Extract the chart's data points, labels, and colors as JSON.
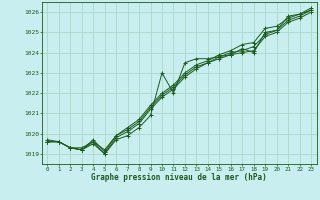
{
  "title": "Graphe pression niveau de la mer (hPa)",
  "bg_color": "#c8eef0",
  "grid_color": "#a8d8c8",
  "line_color": "#1a5c1a",
  "xlim": [
    -0.5,
    23.5
  ],
  "ylim": [
    1018.5,
    1026.5
  ],
  "yticks": [
    1019,
    1020,
    1021,
    1022,
    1023,
    1024,
    1025,
    1026
  ],
  "xticks": [
    0,
    1,
    2,
    3,
    4,
    5,
    6,
    7,
    8,
    9,
    10,
    11,
    12,
    13,
    14,
    15,
    16,
    17,
    18,
    19,
    20,
    21,
    22,
    23
  ],
  "series": [
    [
      1019.6,
      1019.6,
      1019.3,
      1019.2,
      1019.5,
      1019.0,
      1019.7,
      1019.9,
      1020.3,
      1020.9,
      1023.0,
      1022.0,
      1023.5,
      1023.7,
      1023.7,
      1023.8,
      1023.9,
      1024.2,
      1024.0,
      1025.0,
      1025.1,
      1025.8,
      1025.9,
      1026.1
    ],
    [
      1019.6,
      1019.6,
      1019.3,
      1019.2,
      1019.6,
      1019.0,
      1019.8,
      1020.1,
      1020.5,
      1021.2,
      1021.8,
      1022.2,
      1022.8,
      1023.2,
      1023.5,
      1023.7,
      1023.9,
      1024.0,
      1024.1,
      1024.8,
      1025.0,
      1025.5,
      1025.7,
      1026.0
    ],
    [
      1019.6,
      1019.6,
      1019.3,
      1019.3,
      1019.6,
      1019.2,
      1019.9,
      1020.2,
      1020.6,
      1021.3,
      1021.9,
      1022.3,
      1022.9,
      1023.3,
      1023.5,
      1023.8,
      1024.0,
      1024.1,
      1024.3,
      1024.9,
      1025.1,
      1025.6,
      1025.8,
      1026.1
    ],
    [
      1019.7,
      1019.6,
      1019.3,
      1019.2,
      1019.7,
      1019.1,
      1019.9,
      1020.3,
      1020.7,
      1021.4,
      1022.0,
      1022.4,
      1023.0,
      1023.4,
      1023.6,
      1023.9,
      1024.1,
      1024.4,
      1024.5,
      1025.2,
      1025.3,
      1025.7,
      1025.9,
      1026.2
    ]
  ]
}
